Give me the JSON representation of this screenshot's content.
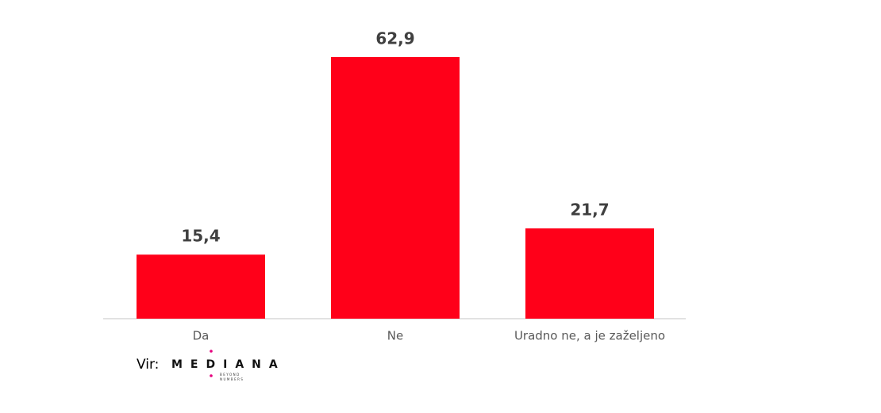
{
  "chart_data": {
    "type": "bar",
    "categories": [
      "Da",
      "Ne",
      "Uradno ne, a je zaželjeno"
    ],
    "values": [
      15.4,
      62.9,
      21.7
    ],
    "value_labels": [
      "15,4",
      "62,9",
      "21,7"
    ],
    "color": "#ff0019"
  },
  "source": {
    "label": "Vir:",
    "logo": "MEDIANA",
    "tagline": [
      "BEYOND",
      "NUMBERS"
    ]
  }
}
